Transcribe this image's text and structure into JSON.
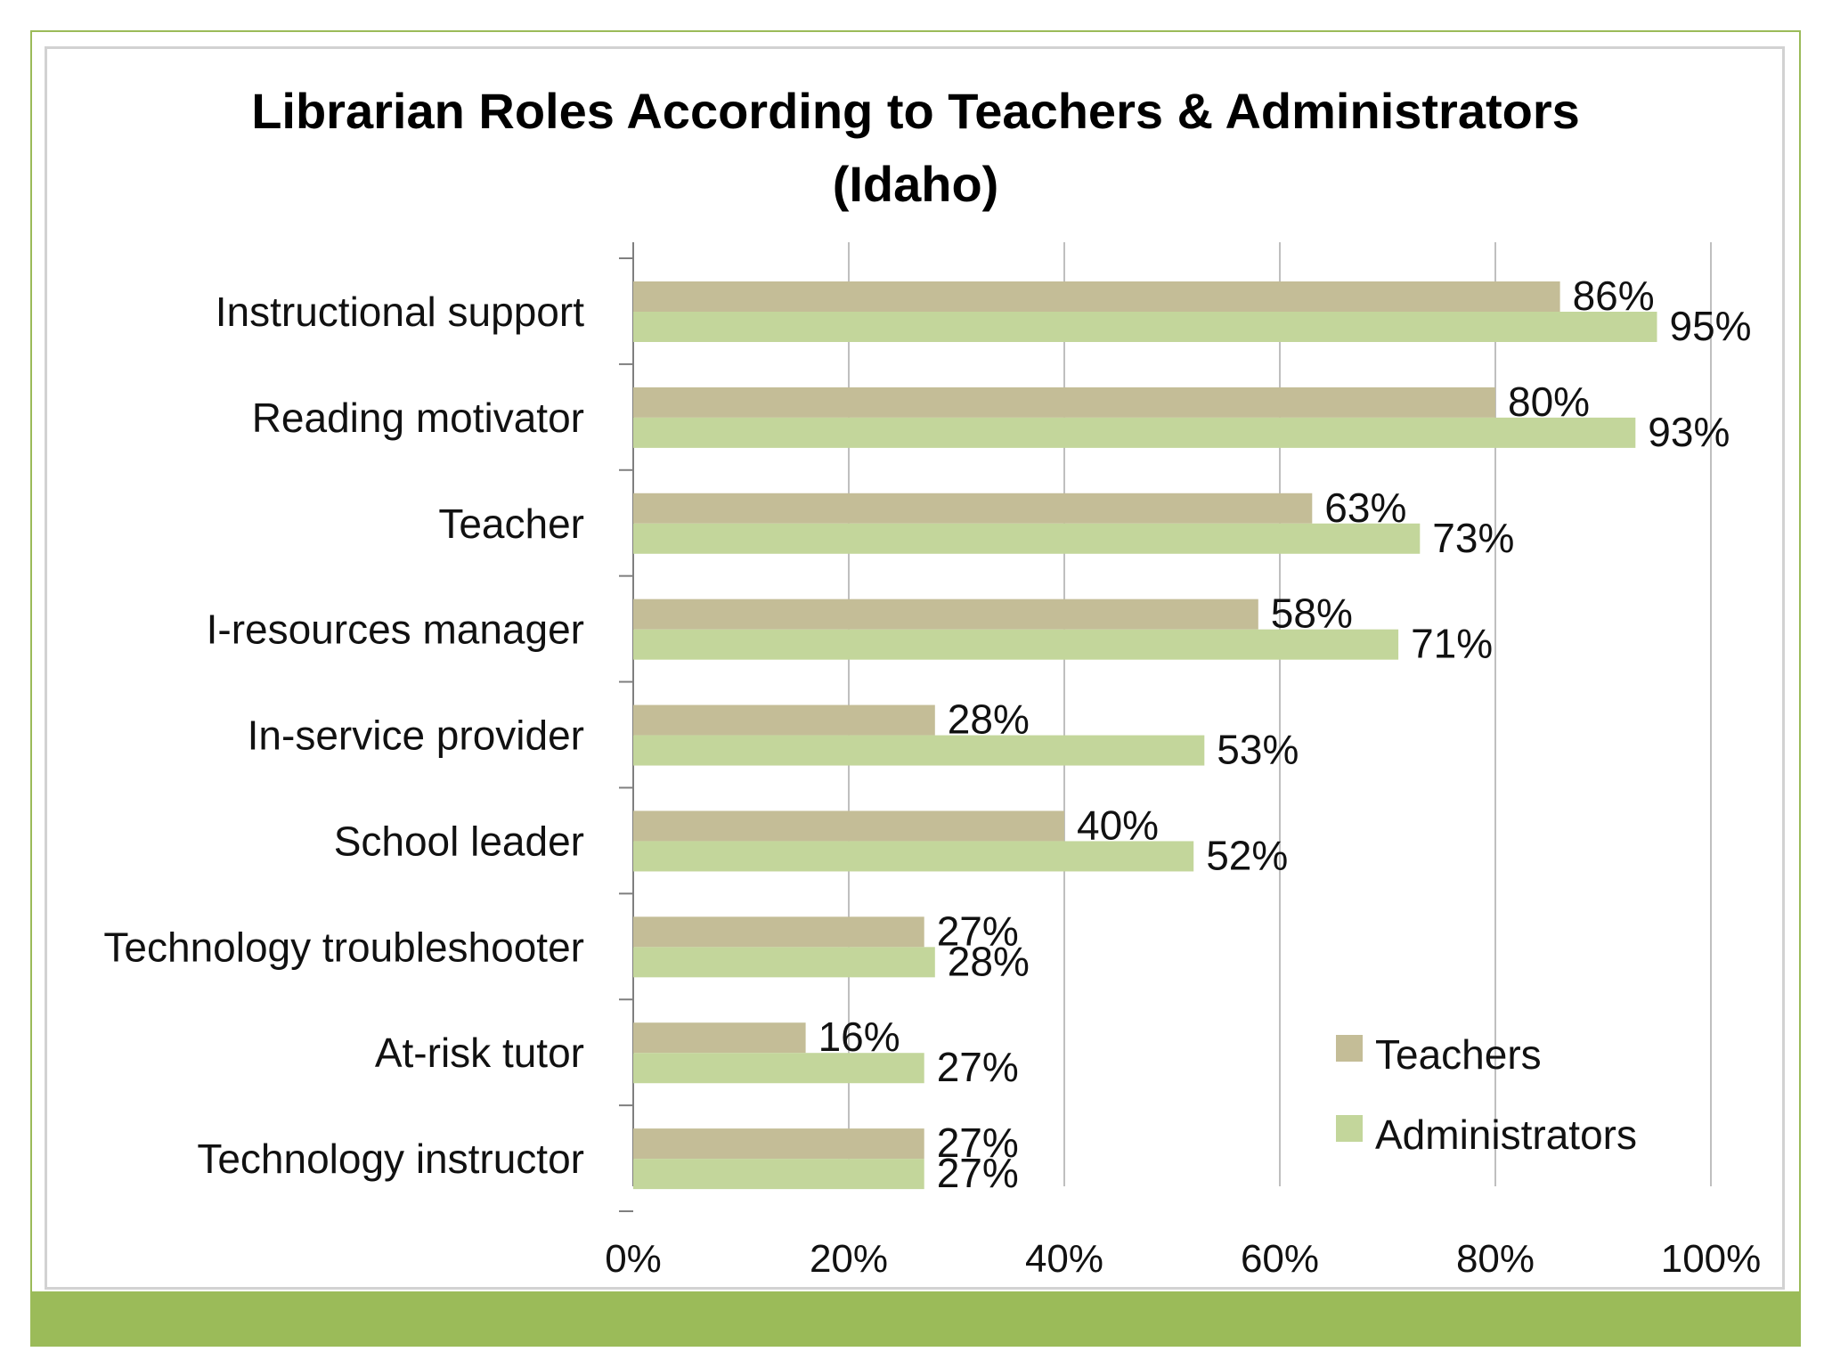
{
  "chart_data": {
    "type": "bar",
    "orientation": "horizontal",
    "title": "Librarian Roles According to Teachers & Administrators",
    "subtitle": "(Idaho)",
    "categories": [
      "Instructional support",
      "Reading motivator",
      "Teacher",
      "I-resources manager",
      "In-service provider",
      "School leader",
      "Technology troubleshooter",
      "At-risk tutor",
      "Technology instructor"
    ],
    "series": [
      {
        "name": "Teachers",
        "color": "#c4bd97",
        "values": [
          86,
          80,
          63,
          58,
          28,
          40,
          27,
          16,
          27
        ],
        "labels": [
          "86%",
          "80%",
          "63%",
          "58%",
          "28%",
          "40%",
          "27%",
          "16%",
          "27%"
        ]
      },
      {
        "name": "Administrators",
        "color": "#c3d69b",
        "values": [
          95,
          93,
          73,
          71,
          53,
          52,
          28,
          27,
          27
        ],
        "labels": [
          "95%",
          "93%",
          "73%",
          "71%",
          "53%",
          "52%",
          "28%",
          "27%",
          "27%"
        ]
      }
    ],
    "xlim": [
      0,
      100
    ],
    "xticks": [
      0,
      20,
      40,
      60,
      80,
      100
    ],
    "xtick_labels": [
      "0%",
      "20%",
      "40%",
      "60%",
      "80%",
      "100%"
    ],
    "grid": "vertical",
    "legend": "bottom-right",
    "xlabel": "",
    "ylabel": ""
  }
}
